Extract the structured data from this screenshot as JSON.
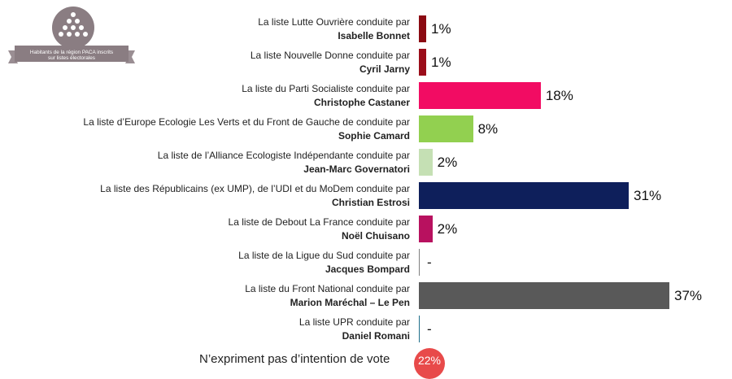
{
  "badge": {
    "text_line1": "Habitants de la région PACA inscrits",
    "text_line2": "sur listes électorales"
  },
  "chart_data": {
    "type": "bar",
    "orientation": "horizontal",
    "unit": "%",
    "xlim": [
      0,
      37
    ],
    "grid": false,
    "legend": "none",
    "rows": [
      {
        "line1": "La liste Lutte Ouvrière conduite par",
        "line2": "Isabelle Bonnet",
        "value": 1,
        "label": "1%",
        "color": "#8b0a12"
      },
      {
        "line1": "La liste Nouvelle Donne conduite par",
        "line2": "Cyril Jarny",
        "value": 1,
        "label": "1%",
        "color": "#9b0d1a"
      },
      {
        "line1": "La liste du Parti Socialiste conduite par",
        "line2": "Christophe Castaner",
        "value": 18,
        "label": "18%",
        "color": "#f20c63"
      },
      {
        "line1": "La liste d’Europe Ecologie Les Verts et du Front de Gauche de conduite par",
        "line2": "Sophie Camard",
        "value": 8,
        "label": "8%",
        "color": "#92d050"
      },
      {
        "line1": "La liste de l’Alliance Ecologiste Indépendante conduite par",
        "line2": "Jean-Marc Governatori",
        "value": 2,
        "label": "2%",
        "color": "#c5e0b4"
      },
      {
        "line1": "La liste des Républicains (ex UMP), de l’UDI et du MoDem conduite par",
        "line2": "Christian Estrosi",
        "value": 31,
        "label": "31%",
        "color": "#0e1f5b"
      },
      {
        "line1": "La liste de Debout La France conduite par",
        "line2": "Noël Chuisano",
        "value": 2,
        "label": "2%",
        "color": "#b8115f"
      },
      {
        "line1": "La liste de la Ligue du Sud conduite par",
        "line2": "Jacques Bompard",
        "value": 0,
        "label": "-",
        "color": "#7f7f7f"
      },
      {
        "line1": "La liste du Front National conduite par",
        "line2": "Marion Maréchal – Le Pen",
        "value": 37,
        "label": "37%",
        "color": "#595959"
      },
      {
        "line1": "La liste UPR conduite par",
        "line2": "Daniel Romani",
        "value": 0,
        "label": "-",
        "color": "#1f6f8b"
      }
    ]
  },
  "footer": {
    "text": "N’expriment pas d’intention de vote",
    "value": "22%",
    "color": "#e84a4a"
  }
}
